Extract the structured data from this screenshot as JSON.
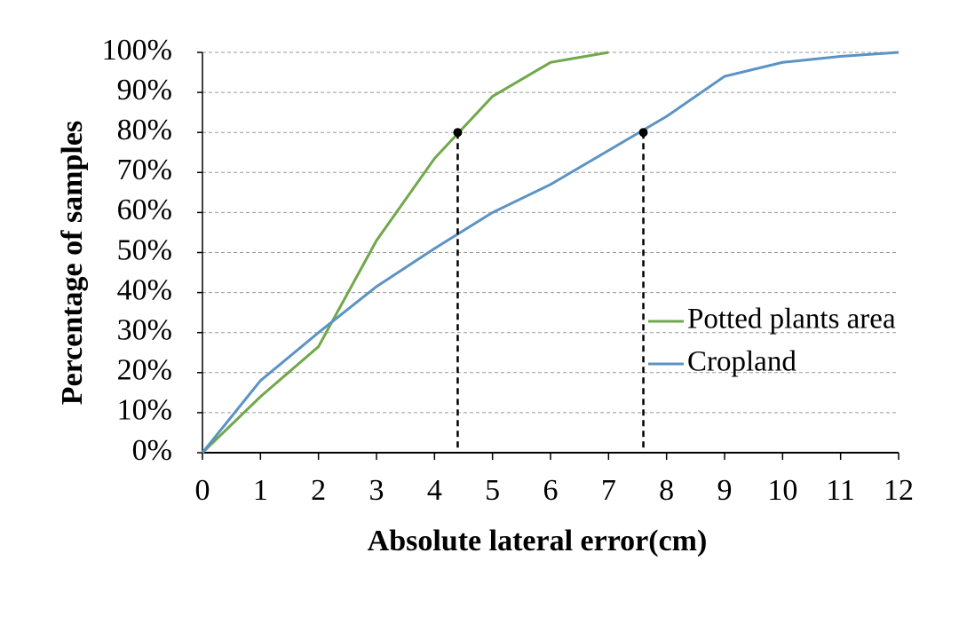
{
  "chart_data": {
    "type": "line",
    "xlabel": "Absolute lateral error(cm)",
    "ylabel": "Percentage of samples",
    "xlim": [
      0,
      12
    ],
    "xticks": [
      0,
      1,
      2,
      3,
      4,
      5,
      6,
      7,
      8,
      9,
      10,
      11,
      12
    ],
    "ylim": [
      0,
      100
    ],
    "yticks": [
      {
        "value": 0,
        "label": "0%"
      },
      {
        "value": 10,
        "label": "10%"
      },
      {
        "value": 20,
        "label": "20%"
      },
      {
        "value": 30,
        "label": "30%"
      },
      {
        "value": 40,
        "label": "40%"
      },
      {
        "value": 50,
        "label": "50%"
      },
      {
        "value": 60,
        "label": "60%"
      },
      {
        "value": 70,
        "label": "70%"
      },
      {
        "value": 80,
        "label": "80%"
      },
      {
        "value": 90,
        "label": "90%"
      },
      {
        "value": 100,
        "label": "100%"
      }
    ],
    "grid": true,
    "legend": "right",
    "series": [
      {
        "name": "Potted plants area",
        "color": "#70a84a",
        "x": [
          0,
          1,
          2,
          3,
          4,
          5,
          6,
          7
        ],
        "values": [
          0,
          14,
          26.5,
          53,
          73.5,
          89,
          97.5,
          100
        ]
      },
      {
        "name": "Cropland",
        "color": "#5b93c5",
        "x": [
          0,
          1,
          2,
          3,
          4,
          5,
          6,
          7,
          8,
          9,
          10,
          11,
          12
        ],
        "values": [
          0,
          18,
          30,
          41.5,
          51,
          60,
          67,
          75.5,
          84,
          94,
          97.5,
          99,
          100
        ]
      }
    ],
    "markers": [
      {
        "x": 4.4,
        "y": 80
      },
      {
        "x": 7.6,
        "y": 80
      }
    ]
  }
}
